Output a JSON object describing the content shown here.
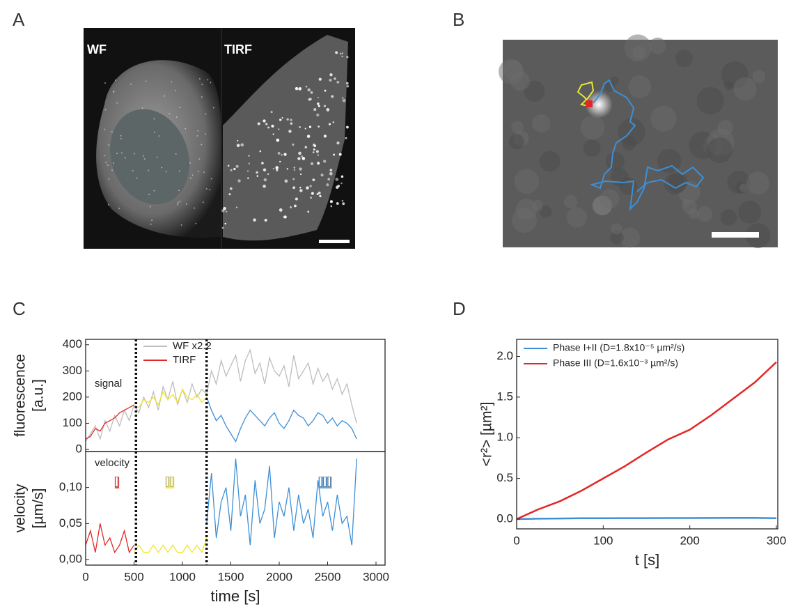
{
  "panel_labels": [
    "A",
    "B",
    "C",
    "D"
  ],
  "images": [
    {
      "label": "WF"
    },
    {
      "label": "TIRF"
    }
  ],
  "chart_data": [
    {
      "type": "line",
      "y_label": [
        "fluorescence",
        "[a.u.]"
      ],
      "xlim": [
        0,
        3000
      ],
      "ylim": [
        0,
        410
      ],
      "yticks": [
        0,
        100,
        200,
        300,
        400
      ],
      "annotation": "signal",
      "phase_boundaries": [
        520,
        1250
      ],
      "series": [
        {
          "name": "WF x2.2",
          "color": "#bdbdbd",
          "x": [
            0,
            50,
            100,
            150,
            200,
            250,
            300,
            350,
            400,
            450,
            500,
            550,
            600,
            650,
            700,
            750,
            800,
            850,
            900,
            950,
            1000,
            1050,
            1100,
            1150,
            1200,
            1250,
            1300,
            1350,
            1400,
            1450,
            1500,
            1550,
            1600,
            1650,
            1700,
            1750,
            1800,
            1850,
            1900,
            1950,
            2000,
            2050,
            2100,
            2150,
            2200,
            2250,
            2300,
            2350,
            2400,
            2450,
            2500,
            2550,
            2600,
            2650,
            2700,
            2750,
            2800
          ],
          "values": [
            30,
            60,
            90,
            40,
            110,
            70,
            130,
            90,
            150,
            110,
            170,
            140,
            200,
            160,
            220,
            150,
            240,
            190,
            260,
            170,
            230,
            180,
            250,
            200,
            230,
            210,
            300,
            250,
            340,
            280,
            320,
            360,
            260,
            340,
            380,
            290,
            330,
            250,
            350,
            300,
            280,
            320,
            240,
            360,
            270,
            300,
            330,
            250,
            310,
            260,
            290,
            230,
            270,
            210,
            250,
            170,
            100
          ]
        },
        {
          "name": "TIRF",
          "color": "#e32626",
          "x": [
            0,
            50,
            100,
            150,
            200,
            250,
            300,
            350,
            400,
            450,
            500
          ],
          "values": [
            40,
            50,
            80,
            70,
            100,
            110,
            120,
            140,
            150,
            160,
            170
          ]
        },
        {
          "color": "#f2e52a",
          "x": [
            500,
            550,
            600,
            650,
            700,
            750,
            800,
            850,
            900,
            950,
            1000,
            1050,
            1100,
            1150,
            1200,
            1250
          ],
          "values": [
            170,
            160,
            190,
            180,
            200,
            170,
            220,
            190,
            210,
            180,
            230,
            200,
            190,
            210,
            180,
            200
          ]
        },
        {
          "color": "#3d8fd6",
          "x": [
            1250,
            1300,
            1350,
            1400,
            1450,
            1500,
            1550,
            1600,
            1650,
            1700,
            1750,
            1800,
            1850,
            1900,
            1950,
            2000,
            2050,
            2100,
            2150,
            2200,
            2250,
            2300,
            2350,
            2400,
            2450,
            2500,
            2550,
            2600,
            2650,
            2700,
            2750,
            2800
          ],
          "values": [
            200,
            150,
            110,
            130,
            90,
            60,
            30,
            80,
            120,
            150,
            130,
            110,
            90,
            120,
            140,
            100,
            80,
            110,
            150,
            130,
            120,
            90,
            110,
            140,
            130,
            100,
            120,
            90,
            110,
            100,
            80,
            40
          ]
        }
      ]
    },
    {
      "type": "line",
      "y_label": [
        "velocity",
        "[µm/s]"
      ],
      "x_label": "time [s]",
      "xlim": [
        0,
        3000
      ],
      "ylim": [
        0,
        0.15
      ],
      "xticks": [
        0,
        500,
        1000,
        1500,
        2000,
        2500,
        3000
      ],
      "yticks": [
        {
          "value": 0,
          "label": "0,00"
        },
        {
          "value": 0.05,
          "label": "0,05"
        },
        {
          "value": 0.1,
          "label": "0,10"
        }
      ],
      "annotation": "velocity",
      "phase_labels": [
        "I",
        "II",
        "III"
      ],
      "phase_boundaries": [
        520,
        1250
      ],
      "series": [
        {
          "color": "#e32626",
          "x": [
            0,
            50,
            100,
            150,
            200,
            250,
            300,
            350,
            400,
            450,
            500
          ],
          "values": [
            0.02,
            0.04,
            0.01,
            0.05,
            0.02,
            0.03,
            0.01,
            0.02,
            0.04,
            0.01,
            0.02
          ]
        },
        {
          "color": "#f2e52a",
          "x": [
            500,
            550,
            600,
            650,
            700,
            750,
            800,
            850,
            900,
            950,
            1000,
            1050,
            1100,
            1150,
            1200,
            1250
          ],
          "values": [
            0.01,
            0.02,
            0.01,
            0.01,
            0.02,
            0.01,
            0.02,
            0.01,
            0.02,
            0.01,
            0.01,
            0.02,
            0.01,
            0.02,
            0.01,
            0.03
          ]
        },
        {
          "color": "#3d8fd6",
          "x": [
            1250,
            1300,
            1350,
            1400,
            1450,
            1500,
            1550,
            1600,
            1650,
            1700,
            1750,
            1800,
            1850,
            1900,
            1950,
            2000,
            2050,
            2100,
            2150,
            2200,
            2250,
            2300,
            2350,
            2400,
            2450,
            2500,
            2550,
            2600,
            2650,
            2700,
            2750,
            2800
          ],
          "values": [
            0.05,
            0.12,
            0.03,
            0.08,
            0.1,
            0.04,
            0.14,
            0.06,
            0.09,
            0.02,
            0.11,
            0.05,
            0.07,
            0.13,
            0.03,
            0.08,
            0.06,
            0.1,
            0.04,
            0.09,
            0.05,
            0.07,
            0.03,
            0.11,
            0.06,
            0.08,
            0.04,
            0.09,
            0.05,
            0.06,
            0.02,
            0.14
          ]
        }
      ]
    },
    {
      "type": "line",
      "y_label": "<r²> [µm²]",
      "x_label": "t [s]",
      "xlim": [
        0,
        300
      ],
      "ylim": [
        -0.12,
        2.21
      ],
      "xticks": [
        0,
        100,
        200,
        300
      ],
      "yticks": [
        {
          "value": 0,
          "label": "0.0"
        },
        0.5,
        {
          "value": 1,
          "label": "1.0"
        },
        1.5,
        {
          "value": 2,
          "label": "2.0"
        }
      ],
      "series": [
        {
          "name": "Phase I+II (D=1.8x10⁻⁵ µm²/s)",
          "color": "#3d8fd6",
          "x": [
            0,
            25,
            50,
            75,
            100,
            125,
            150,
            175,
            200,
            225,
            250,
            275,
            300
          ],
          "values": [
            0,
            0.005,
            0.008,
            0.01,
            0.01,
            0.012,
            0.012,
            0.013,
            0.013,
            0.014,
            0.015,
            0.015,
            0.01
          ]
        },
        {
          "name": "Phase III   (D=1.6x10⁻³ µm²/s)",
          "color": "#e32626",
          "x": [
            0,
            25,
            50,
            75,
            100,
            125,
            150,
            175,
            200,
            225,
            250,
            275,
            300
          ],
          "values": [
            0,
            0.12,
            0.22,
            0.35,
            0.5,
            0.65,
            0.82,
            0.98,
            1.1,
            1.28,
            1.48,
            1.68,
            1.93
          ]
        }
      ]
    }
  ]
}
